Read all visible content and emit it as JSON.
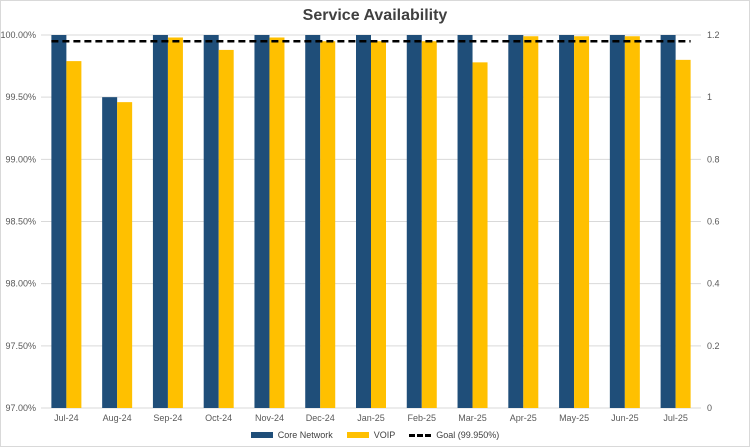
{
  "chart_data": {
    "type": "bar",
    "title": "Service Availability",
    "categories": [
      "Jul-24",
      "Aug-24",
      "Sep-24",
      "Oct-24",
      "Nov-24",
      "Dec-24",
      "Jan-25",
      "Feb-25",
      "Mar-25",
      "Apr-25",
      "May-25",
      "Jun-25",
      "Jul-25"
    ],
    "series": [
      {
        "name": "Core Network",
        "type": "bar",
        "axis": "left",
        "color": "#1f4e79",
        "values": [
          100.0,
          99.5,
          100.0,
          100.0,
          100.0,
          100.0,
          100.0,
          100.0,
          100.0,
          100.0,
          100.0,
          100.0,
          100.0
        ]
      },
      {
        "name": "VOIP",
        "type": "bar",
        "axis": "left",
        "color": "#ffc000",
        "values": [
          99.79,
          99.46,
          99.98,
          99.88,
          99.98,
          99.95,
          99.95,
          99.95,
          99.78,
          99.99,
          99.99,
          99.99,
          99.8
        ]
      },
      {
        "name": "Goal (99.950%)",
        "type": "line",
        "axis": "left",
        "color": "#000000",
        "dashed": true,
        "values": [
          99.95,
          99.95,
          99.95,
          99.95,
          99.95,
          99.95,
          99.95,
          99.95,
          99.95,
          99.95,
          99.95,
          99.95,
          99.95
        ]
      }
    ],
    "ylim": [
      97.0,
      100.0
    ],
    "yticks": [
      "97.00%",
      "97.50%",
      "98.00%",
      "98.50%",
      "99.00%",
      "99.50%",
      "100.00%"
    ],
    "y2lim": [
      0,
      1.2
    ],
    "y2ticks": [
      "0",
      "0.2",
      "0.4",
      "0.6",
      "0.8",
      "1",
      "1.2"
    ],
    "xlabel": "",
    "ylabel": "",
    "grid": true,
    "legend_position": "bottom"
  }
}
